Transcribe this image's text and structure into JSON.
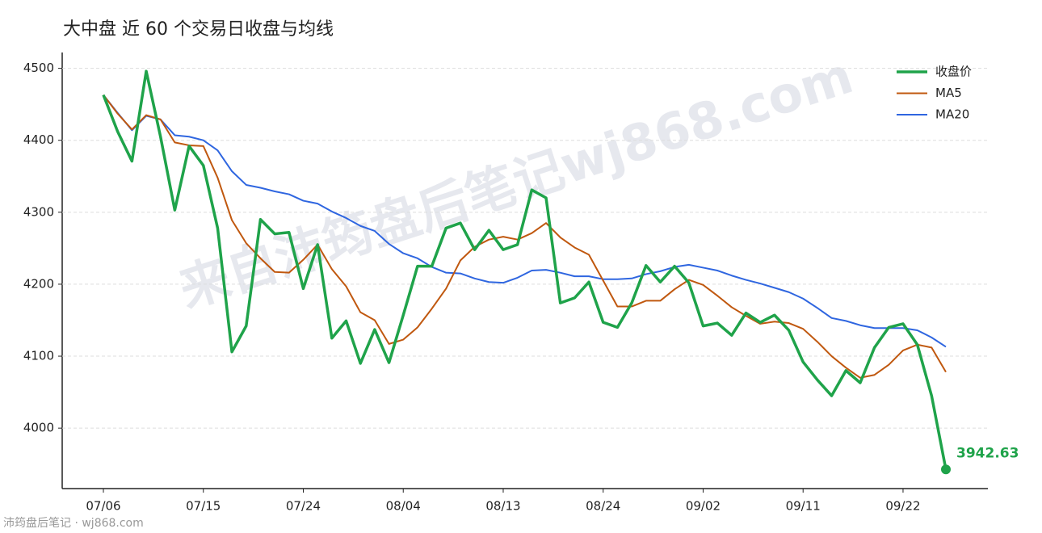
{
  "chart_data": {
    "type": "line",
    "title": "大中盘 近 60 个交易日收盘与均线",
    "categories": [
      "07/06",
      null,
      null,
      null,
      null,
      null,
      null,
      "07/15",
      null,
      null,
      null,
      null,
      null,
      null,
      "07/24",
      null,
      null,
      null,
      null,
      null,
      null,
      "08/04",
      null,
      null,
      null,
      null,
      null,
      null,
      "08/13",
      null,
      null,
      null,
      null,
      null,
      null,
      "08/24",
      null,
      null,
      null,
      null,
      null,
      null,
      "09/02",
      null,
      null,
      null,
      null,
      null,
      null,
      "09/11",
      null,
      null,
      null,
      null,
      null,
      null,
      "09/22",
      null,
      null,
      null
    ],
    "series": [
      {
        "name": "收盘价",
        "color": "#1fa34a",
        "values": [
          4463,
          4412,
          4371,
          4496,
          4405,
          4303,
          4392,
          4365,
          4278,
          4106,
          4142,
          4290,
          4270,
          4272,
          4194,
          4255,
          4125,
          4149,
          4090,
          4137,
          4091,
          4157,
          4225,
          4225,
          4278,
          4285,
          4248,
          4275,
          4248,
          4255,
          4331,
          4320,
          4174,
          4181,
          4203,
          4147,
          4140,
          4174,
          4226,
          4203,
          4225,
          4202,
          4142,
          4146,
          4129,
          4160,
          4147,
          4157,
          4136,
          4092,
          4067,
          4045,
          4080,
          4063,
          4112,
          4140,
          4145,
          4116,
          4045,
          3942.63
        ]
      },
      {
        "name": "MA5",
        "color": "#c0580f",
        "values": [
          4463,
          4437,
          4415,
          4435,
          4429,
          4397,
          4393,
          4392,
          4348,
          4289,
          4257,
          4236,
          4217,
          4216,
          4234,
          4255,
          4221,
          4197,
          4161,
          4150,
          4117,
          4123,
          4140,
          4166,
          4194,
          4233,
          4252,
          4262,
          4266,
          4262,
          4271,
          4285,
          4265,
          4251,
          4241,
          4205,
          4169,
          4169,
          4177,
          4177,
          4193,
          4206,
          4199,
          4184,
          4168,
          4156,
          4145,
          4148,
          4146,
          4138,
          4120,
          4100,
          4084,
          4070,
          4074,
          4088,
          4108,
          4116,
          4112,
          4078
        ]
      },
      {
        "name": "MA20",
        "color": "#2f66e0",
        "values": [
          4463,
          4438,
          4414,
          4434,
          4429,
          4407,
          4405,
          4400,
          4386,
          4357,
          4338,
          4334,
          4329,
          4325,
          4316,
          4312,
          4301,
          4292,
          4281,
          4274,
          4256,
          4243,
          4236,
          4224,
          4216,
          4215,
          4208,
          4203,
          4202,
          4209,
          4219,
          4220,
          4216,
          4211,
          4211,
          4207,
          4207,
          4208,
          4214,
          4218,
          4224,
          4227,
          4223,
          4219,
          4212,
          4206,
          4201,
          4195,
          4189,
          4180,
          4167,
          4153,
          4149,
          4143,
          4139,
          4139,
          4139,
          4136,
          4126,
          4113
        ]
      }
    ],
    "ylim": [
      3916,
      4522
    ],
    "yticks": [
      4000,
      4100,
      4200,
      4300,
      4400,
      4500
    ],
    "grid": true,
    "legend": "upper right",
    "watermark": "来自沛筠盘后笔记wj868.com",
    "footer": "沛筠盘后笔记 · wj868.com"
  }
}
